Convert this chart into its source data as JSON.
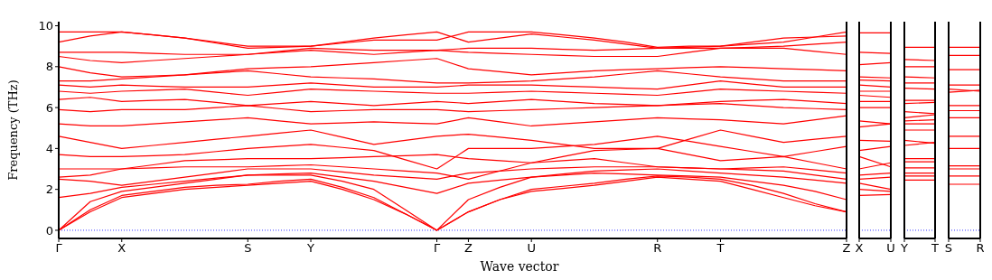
{
  "chart_data": [
    {
      "type": "line",
      "xlabel": "Wave vector",
      "ylabel": "Frequency (THz)",
      "categories": [
        "Γ",
        null,
        "X",
        null,
        null,
        null,
        "S",
        null,
        "Y",
        null,
        null,
        null,
        "Γ",
        "Z",
        null,
        "U",
        null,
        null,
        null,
        "R",
        null,
        "T",
        null,
        null,
        null,
        "Z"
      ],
      "ylim": [
        -0.4,
        10.2
      ],
      "yticks": [
        0,
        2,
        4,
        6,
        8,
        10
      ],
      "ref_lines": [
        {
          "axis": "y",
          "value": 0,
          "color": "#0000ff",
          "line_style": "dotted"
        }
      ],
      "series": [
        {
          "color": "#ff0000",
          "values": [
            0,
            0.9,
            1.6,
            1.8,
            2.0,
            2.1,
            2.2,
            2.3,
            2.4,
            2.0,
            1.5,
            0.8,
            0,
            0.9,
            1.5,
            1.9,
            2.05,
            2.2,
            2.4,
            2.6,
            2.5,
            2.4,
            2.0,
            1.6,
            1.2,
            0.9
          ]
        },
        {
          "color": "#ff0000",
          "values": [
            0,
            1.0,
            1.7,
            1.9,
            2.1,
            2.2,
            2.25,
            2.4,
            2.5,
            2.1,
            1.6,
            0.8,
            0,
            0.9,
            1.5,
            2.0,
            2.15,
            2.3,
            2.5,
            2.65,
            2.6,
            2.5,
            2.2,
            1.8,
            1.3,
            0.9
          ]
        },
        {
          "color": "#ff0000",
          "values": [
            0,
            1.4,
            1.9,
            2.1,
            2.3,
            2.5,
            2.7,
            2.7,
            2.7,
            2.4,
            2.0,
            1.0,
            0,
            1.5,
            2.1,
            2.6,
            2.7,
            2.8,
            2.75,
            2.7,
            2.65,
            2.6,
            2.4,
            2.2,
            1.9,
            1.5
          ]
        },
        {
          "color": "#ff0000",
          "values": [
            1.6,
            1.8,
            2.1,
            2.25,
            2.4,
            2.55,
            2.7,
            2.75,
            2.8,
            2.6,
            2.4,
            2.1,
            1.8,
            2.3,
            2.45,
            2.6,
            2.75,
            2.9,
            2.95,
            3.0,
            2.9,
            2.8,
            2.7,
            2.6,
            2.45,
            2.3
          ]
        },
        {
          "color": "#ff0000",
          "values": [
            2.5,
            2.4,
            2.2,
            2.4,
            2.6,
            2.8,
            3.0,
            3.0,
            3.0,
            2.85,
            2.7,
            2.6,
            2.5,
            2.8,
            2.9,
            3.0,
            3.05,
            3.1,
            3.1,
            3.1,
            3.05,
            3.0,
            2.95,
            2.9,
            2.7,
            2.5
          ]
        },
        {
          "color": "#ff0000",
          "values": [
            2.6,
            2.7,
            3.0,
            3.05,
            3.1,
            3.1,
            3.1,
            3.15,
            3.2,
            3.1,
            3.0,
            2.9,
            2.8,
            2.5,
            2.9,
            3.3,
            3.4,
            3.5,
            3.3,
            3.1,
            3.05,
            3.0,
            3.05,
            3.1,
            2.95,
            2.8
          ]
        },
        {
          "color": "#ff0000",
          "values": [
            3.0,
            3.0,
            3.0,
            3.2,
            3.4,
            3.45,
            3.5,
            3.5,
            3.5,
            3.55,
            3.6,
            3.65,
            3.7,
            3.5,
            3.4,
            3.3,
            3.6,
            3.9,
            3.95,
            4.0,
            3.7,
            3.4,
            3.5,
            3.6,
            3.3,
            3.0
          ]
        },
        {
          "color": "#ff0000",
          "values": [
            3.7,
            3.6,
            3.6,
            3.65,
            3.7,
            3.85,
            4.0,
            4.1,
            4.2,
            4.05,
            3.9,
            3.45,
            3.0,
            4.0,
            4.0,
            4.0,
            4.1,
            4.2,
            4.4,
            4.6,
            4.35,
            4.1,
            3.85,
            3.6,
            3.85,
            4.1
          ]
        },
        {
          "color": "#ff0000",
          "values": [
            4.6,
            4.3,
            4.0,
            4.15,
            4.3,
            4.45,
            4.6,
            4.75,
            4.9,
            4.55,
            4.2,
            4.4,
            4.6,
            4.7,
            4.55,
            4.4,
            4.2,
            4.0,
            4.0,
            4.0,
            4.45,
            4.9,
            4.6,
            4.3,
            4.45,
            4.6
          ]
        },
        {
          "color": "#ff0000",
          "values": [
            5.2,
            5.1,
            5.1,
            5.2,
            5.3,
            5.4,
            5.5,
            5.35,
            5.2,
            5.25,
            5.3,
            5.25,
            5.2,
            5.5,
            5.3,
            5.1,
            5.2,
            5.3,
            5.4,
            5.5,
            5.45,
            5.4,
            5.3,
            5.2,
            5.4,
            5.6
          ]
        },
        {
          "color": "#ff0000",
          "values": [
            5.9,
            5.8,
            5.9,
            5.9,
            5.9,
            6.0,
            6.1,
            5.95,
            5.8,
            5.85,
            5.9,
            5.9,
            5.9,
            5.8,
            5.85,
            5.9,
            5.95,
            6.0,
            6.05,
            6.1,
            6.15,
            6.2,
            6.1,
            6.0,
            5.95,
            5.9
          ]
        },
        {
          "color": "#ff0000",
          "values": [
            6.4,
            6.5,
            6.3,
            6.35,
            6.4,
            6.25,
            6.1,
            6.2,
            6.3,
            6.2,
            6.1,
            6.2,
            6.3,
            6.2,
            6.3,
            6.4,
            6.3,
            6.2,
            6.15,
            6.1,
            6.2,
            6.3,
            6.35,
            6.4,
            6.3,
            6.2
          ]
        },
        {
          "color": "#ff0000",
          "values": [
            6.8,
            6.7,
            6.8,
            6.85,
            6.9,
            6.75,
            6.6,
            6.75,
            6.9,
            6.85,
            6.8,
            6.75,
            6.7,
            6.7,
            6.75,
            6.8,
            6.75,
            6.7,
            6.65,
            6.6,
            6.75,
            6.9,
            6.85,
            6.8,
            6.75,
            6.7
          ]
        },
        {
          "color": "#ff0000",
          "values": [
            7.1,
            7.0,
            7.1,
            7.05,
            7.0,
            7.0,
            7.0,
            7.1,
            7.2,
            7.1,
            7.0,
            7.0,
            7.0,
            7.1,
            7.1,
            7.1,
            7.05,
            7.0,
            6.95,
            6.9,
            7.1,
            7.3,
            7.15,
            7.0,
            7.0,
            7.0
          ]
        },
        {
          "color": "#ff0000",
          "values": [
            7.3,
            7.3,
            7.4,
            7.5,
            7.6,
            7.7,
            7.8,
            7.65,
            7.5,
            7.45,
            7.4,
            7.3,
            7.2,
            7.2,
            7.25,
            7.3,
            7.4,
            7.5,
            7.65,
            7.8,
            7.65,
            7.5,
            7.4,
            7.3,
            7.3,
            7.3
          ]
        },
        {
          "color": "#ff0000",
          "values": [
            8.0,
            7.7,
            7.5,
            7.55,
            7.6,
            7.75,
            7.9,
            7.95,
            8.0,
            8.1,
            8.2,
            8.3,
            8.4,
            7.9,
            7.75,
            7.6,
            7.7,
            7.8,
            7.85,
            7.9,
            7.95,
            8.0,
            7.95,
            7.9,
            7.85,
            7.8
          ]
        },
        {
          "color": "#ff0000",
          "values": [
            8.5,
            8.3,
            8.2,
            8.3,
            8.4,
            8.5,
            8.6,
            8.7,
            8.8,
            8.7,
            8.6,
            8.7,
            8.8,
            8.7,
            8.65,
            8.6,
            8.55,
            8.5,
            8.5,
            8.5,
            8.7,
            8.9,
            8.9,
            8.9,
            8.75,
            8.6
          ]
        },
        {
          "color": "#ff0000",
          "values": [
            8.7,
            8.7,
            8.7,
            8.65,
            8.6,
            8.6,
            8.6,
            8.75,
            8.9,
            8.85,
            8.8,
            8.8,
            8.8,
            8.9,
            8.9,
            8.9,
            8.85,
            8.8,
            8.85,
            8.9,
            8.9,
            8.9,
            8.95,
            9.0,
            9.1,
            9.2
          ]
        },
        {
          "color": "#ff0000",
          "values": [
            9.2,
            9.5,
            9.7,
            9.55,
            9.4,
            9.15,
            8.9,
            8.95,
            9.0,
            9.2,
            9.4,
            9.55,
            9.7,
            9.2,
            9.4,
            9.6,
            9.45,
            9.3,
            9.1,
            8.9,
            8.95,
            9.0,
            9.1,
            9.2,
            9.45,
            9.7
          ]
        },
        {
          "color": "#ff0000",
          "values": [
            9.7,
            9.7,
            9.7,
            9.55,
            9.4,
            9.2,
            9.0,
            9.0,
            9.0,
            9.15,
            9.3,
            9.3,
            9.3,
            9.7,
            9.7,
            9.7,
            9.55,
            9.4,
            9.2,
            8.95,
            9.0,
            9.0,
            9.2,
            9.4,
            9.45,
            9.5
          ]
        }
      ]
    },
    {
      "type": "line",
      "categories": [
        "X",
        "U"
      ],
      "ylim": [
        -0.4,
        10.2
      ],
      "yticks": [
        0,
        2,
        4,
        6,
        8,
        10
      ],
      "tick_labels": "x",
      "ref_lines": [
        {
          "axis": "y",
          "value": 0,
          "color": "#0000ff",
          "line_style": "dotted"
        }
      ],
      "series": [
        {
          "color": "#ff0000",
          "values": [
            9.65,
            9.65
          ]
        },
        {
          "color": "#ff0000",
          "values": [
            8.7,
            8.65
          ]
        },
        {
          "color": "#ff0000",
          "values": [
            8.1,
            8.2
          ]
        },
        {
          "color": "#ff0000",
          "values": [
            7.5,
            7.45
          ]
        },
        {
          "color": "#ff0000",
          "values": [
            7.35,
            7.3
          ]
        },
        {
          "color": "#ff0000",
          "values": [
            7.1,
            7.0
          ]
        },
        {
          "color": "#ff0000",
          "values": [
            6.8,
            6.8
          ]
        },
        {
          "color": "#ff0000",
          "values": [
            6.6,
            6.5
          ]
        },
        {
          "color": "#ff0000",
          "values": [
            6.3,
            6.3
          ]
        },
        {
          "color": "#ff0000",
          "values": [
            6.0,
            6.0
          ]
        },
        {
          "color": "#ff0000",
          "values": [
            5.35,
            5.2
          ]
        },
        {
          "color": "#ff0000",
          "values": [
            5.05,
            5.2
          ]
        },
        {
          "color": "#ff0000",
          "values": [
            4.4,
            4.35
          ]
        },
        {
          "color": "#ff0000",
          "values": [
            3.9,
            4.1
          ]
        },
        {
          "color": "#ff0000",
          "values": [
            3.6,
            3.1
          ]
        },
        {
          "color": "#ff0000",
          "values": [
            3.0,
            3.3
          ]
        },
        {
          "color": "#ff0000",
          "values": [
            2.7,
            2.8
          ]
        },
        {
          "color": "#ff0000",
          "values": [
            2.5,
            2.6
          ]
        },
        {
          "color": "#ff0000",
          "values": [
            2.3,
            2.0
          ]
        },
        {
          "color": "#ff0000",
          "values": [
            2.0,
            1.9
          ]
        },
        {
          "color": "#ff0000",
          "values": [
            1.7,
            1.75
          ]
        }
      ]
    },
    {
      "type": "line",
      "categories": [
        "Y",
        "T"
      ],
      "ylim": [
        -0.4,
        10.2
      ],
      "yticks": [
        0,
        2,
        4,
        6,
        8,
        10
      ],
      "tick_labels": "x",
      "ref_lines": [
        {
          "axis": "y",
          "value": 0,
          "color": "#0000ff",
          "line_style": "dotted"
        }
      ],
      "series": [
        {
          "color": "#ff0000",
          "values": [
            8.95,
            8.95
          ]
        },
        {
          "color": "#ff0000",
          "values": [
            8.35,
            8.3
          ]
        },
        {
          "color": "#ff0000",
          "values": [
            8.0,
            8.0
          ]
        },
        {
          "color": "#ff0000",
          "values": [
            7.5,
            7.45
          ]
        },
        {
          "color": "#ff0000",
          "values": [
            7.2,
            7.2
          ]
        },
        {
          "color": "#ff0000",
          "values": [
            6.95,
            6.9
          ]
        },
        {
          "color": "#ff0000",
          "values": [
            6.35,
            6.35
          ]
        },
        {
          "color": "#ff0000",
          "values": [
            6.2,
            6.25
          ]
        },
        {
          "color": "#ff0000",
          "values": [
            5.8,
            5.7
          ]
        },
        {
          "color": "#ff0000",
          "values": [
            5.5,
            5.65
          ]
        },
        {
          "color": "#ff0000",
          "values": [
            5.35,
            5.4
          ]
        },
        {
          "color": "#ff0000",
          "values": [
            5.2,
            5.2
          ]
        },
        {
          "color": "#ff0000",
          "values": [
            4.9,
            4.9
          ]
        },
        {
          "color": "#ff0000",
          "values": [
            4.4,
            4.25
          ]
        },
        {
          "color": "#ff0000",
          "values": [
            4.15,
            4.3
          ]
        },
        {
          "color": "#ff0000",
          "values": [
            3.5,
            3.5
          ]
        },
        {
          "color": "#ff0000",
          "values": [
            3.35,
            3.35
          ]
        },
        {
          "color": "#ff0000",
          "values": [
            3.05,
            3.05
          ]
        },
        {
          "color": "#ff0000",
          "values": [
            2.8,
            2.8
          ]
        },
        {
          "color": "#ff0000",
          "values": [
            2.65,
            2.65
          ]
        },
        {
          "color": "#ff0000",
          "values": [
            2.45,
            2.45
          ]
        }
      ]
    },
    {
      "type": "line",
      "categories": [
        "S",
        "R"
      ],
      "ylim": [
        -0.4,
        10.2
      ],
      "yticks": [
        0,
        2,
        4,
        6,
        8,
        10
      ],
      "tick_labels": "x",
      "ref_lines": [
        {
          "axis": "y",
          "value": 0,
          "color": "#0000ff",
          "line_style": "dotted"
        }
      ],
      "series": [
        {
          "color": "#ff0000",
          "values": [
            8.95,
            8.95
          ]
        },
        {
          "color": "#ff0000",
          "values": [
            8.55,
            8.55
          ]
        },
        {
          "color": "#ff0000",
          "values": [
            7.85,
            7.85
          ]
        },
        {
          "color": "#ff0000",
          "values": [
            7.1,
            7.1
          ]
        },
        {
          "color": "#ff0000",
          "values": [
            6.9,
            6.8
          ]
        },
        {
          "color": "#ff0000",
          "values": [
            6.75,
            6.85
          ]
        },
        {
          "color": "#ff0000",
          "values": [
            6.1,
            6.1
          ]
        },
        {
          "color": "#ff0000",
          "values": [
            5.85,
            5.85
          ]
        },
        {
          "color": "#ff0000",
          "values": [
            5.5,
            5.5
          ]
        },
        {
          "color": "#ff0000",
          "values": [
            4.6,
            4.6
          ]
        },
        {
          "color": "#ff0000",
          "values": [
            4.0,
            4.0
          ]
        },
        {
          "color": "#ff0000",
          "values": [
            3.15,
            3.15
          ]
        },
        {
          "color": "#ff0000",
          "values": [
            3.0,
            3.0
          ]
        },
        {
          "color": "#ff0000",
          "values": [
            2.65,
            2.65
          ]
        },
        {
          "color": "#ff0000",
          "values": [
            2.25,
            2.25
          ]
        }
      ]
    }
  ]
}
